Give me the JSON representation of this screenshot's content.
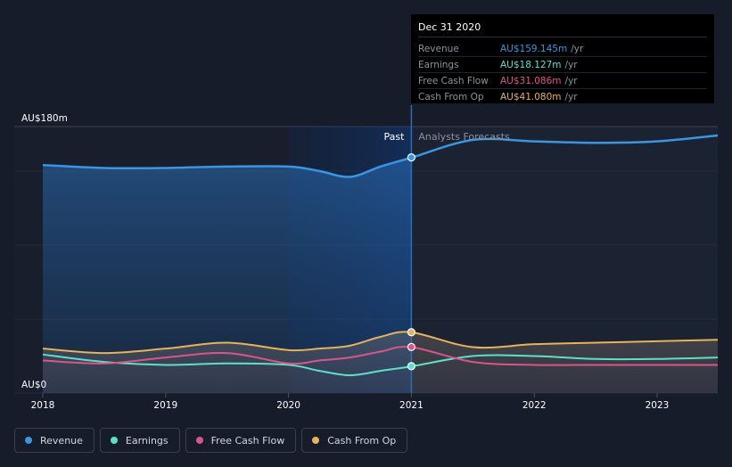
{
  "tooltip": {
    "date": "Dec 31 2020",
    "rows": [
      {
        "label": "Revenue",
        "value": "AU$159.145m",
        "unit": "/yr",
        "color": "#3c95e0"
      },
      {
        "label": "Earnings",
        "value": "AU$18.127m",
        "unit": "/yr",
        "color": "#5ee0c8"
      },
      {
        "label": "Free Cash Flow",
        "value": "AU$31.086m",
        "unit": "/yr",
        "color": "#d9568c"
      },
      {
        "label": "Cash From Op",
        "value": "AU$41.080m",
        "unit": "/yr",
        "color": "#e6b25c"
      }
    ]
  },
  "legend": [
    {
      "label": "Revenue",
      "color": "#3c95e0"
    },
    {
      "label": "Earnings",
      "color": "#5ee0c8"
    },
    {
      "label": "Free Cash Flow",
      "color": "#d9568c"
    },
    {
      "label": "Cash From Op",
      "color": "#e6b25c"
    }
  ],
  "chart_data": {
    "type": "line",
    "title": "",
    "xlabel": "",
    "ylabel": "",
    "ylim": [
      0,
      180
    ],
    "xlim": [
      2017.9,
      2023.5
    ],
    "y_tick_labels": [
      "AU$180m",
      "AU$0"
    ],
    "y_ticks": [
      180,
      0
    ],
    "x_ticks": [
      2018,
      2019,
      2020,
      2021,
      2022,
      2023
    ],
    "x_tick_labels": [
      "2018",
      "2019",
      "2020",
      "2021",
      "2022",
      "2023"
    ],
    "divider_x": 2021.0,
    "highlight_start": 2020.0,
    "past_label": "Past",
    "forecast_label": "Analysts Forecasts",
    "series": [
      {
        "name": "Revenue",
        "color": "#3c95e0",
        "x": [
          2018.0,
          2018.5,
          2019.0,
          2019.5,
          2020.0,
          2020.25,
          2020.5,
          2020.75,
          2021.0,
          2021.5,
          2022.0,
          2022.5,
          2023.0,
          2023.5
        ],
        "values": [
          154,
          152,
          152,
          153,
          153,
          150,
          146,
          153,
          159,
          171,
          170,
          169,
          170,
          174
        ]
      },
      {
        "name": "Earnings",
        "color": "#5ee0c8",
        "x": [
          2018.0,
          2018.5,
          2019.0,
          2019.5,
          2020.0,
          2020.25,
          2020.5,
          2020.75,
          2021.0,
          2021.5,
          2022.0,
          2022.5,
          2023.0,
          2023.5
        ],
        "values": [
          26,
          21,
          19,
          20,
          19,
          15,
          12,
          15,
          18,
          25,
          25,
          23,
          23,
          24
        ]
      },
      {
        "name": "Free Cash Flow",
        "color": "#d9568c",
        "x": [
          2018.0,
          2018.5,
          2019.0,
          2019.5,
          2020.0,
          2020.25,
          2020.5,
          2020.75,
          2021.0,
          2021.5,
          2022.0,
          2022.5,
          2023.0,
          2023.5
        ],
        "values": [
          22,
          20,
          24,
          27,
          20,
          22,
          24,
          28,
          31,
          21,
          19,
          19,
          19,
          19
        ]
      },
      {
        "name": "Cash From Op",
        "color": "#e6b25c",
        "x": [
          2018.0,
          2018.5,
          2019.0,
          2019.5,
          2020.0,
          2020.25,
          2020.5,
          2020.75,
          2021.0,
          2021.5,
          2022.0,
          2022.5,
          2023.0,
          2023.5
        ],
        "values": [
          30,
          27,
          30,
          34,
          29,
          30,
          32,
          38,
          41,
          31,
          33,
          34,
          35,
          36
        ]
      }
    ],
    "highlight_points": [
      {
        "series": "Revenue",
        "x": 2021.0,
        "value": 159.145
      },
      {
        "series": "Earnings",
        "x": 2021.0,
        "value": 18.127
      },
      {
        "series": "Free Cash Flow",
        "x": 2021.0,
        "value": 31.086
      },
      {
        "series": "Cash From Op",
        "x": 2021.0,
        "value": 41.08
      }
    ]
  }
}
